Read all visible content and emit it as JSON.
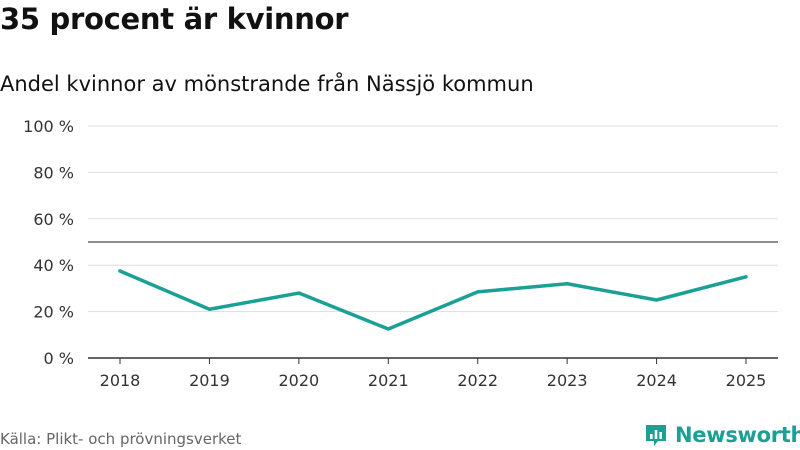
{
  "header": {
    "title": "35 procent är kvinnor",
    "subtitle": "Andel kvinnor av mönstrande från Nässjö kommun"
  },
  "footer": {
    "source": "Källa: Plikt- och prövningsverket",
    "brand": "Newsworthy"
  },
  "colors": {
    "line": "#1aa094",
    "reference_line": "#666666",
    "grid": "#dddddd",
    "axis": "#333333",
    "brand": "#1aa094"
  },
  "chart_data": {
    "type": "line",
    "categories": [
      "2018",
      "2019",
      "2020",
      "2021",
      "2022",
      "2023",
      "2024",
      "2025"
    ],
    "values": [
      37.5,
      21,
      28,
      12.5,
      28.5,
      32,
      25,
      35
    ],
    "ylim": [
      0,
      100
    ],
    "yticks": [
      0,
      20,
      40,
      60,
      80,
      100
    ],
    "ytick_labels": [
      "0 %",
      "20 %",
      "40 %",
      "60 %",
      "80 %",
      "100 %"
    ],
    "reference_line": 50,
    "grid": true
  }
}
